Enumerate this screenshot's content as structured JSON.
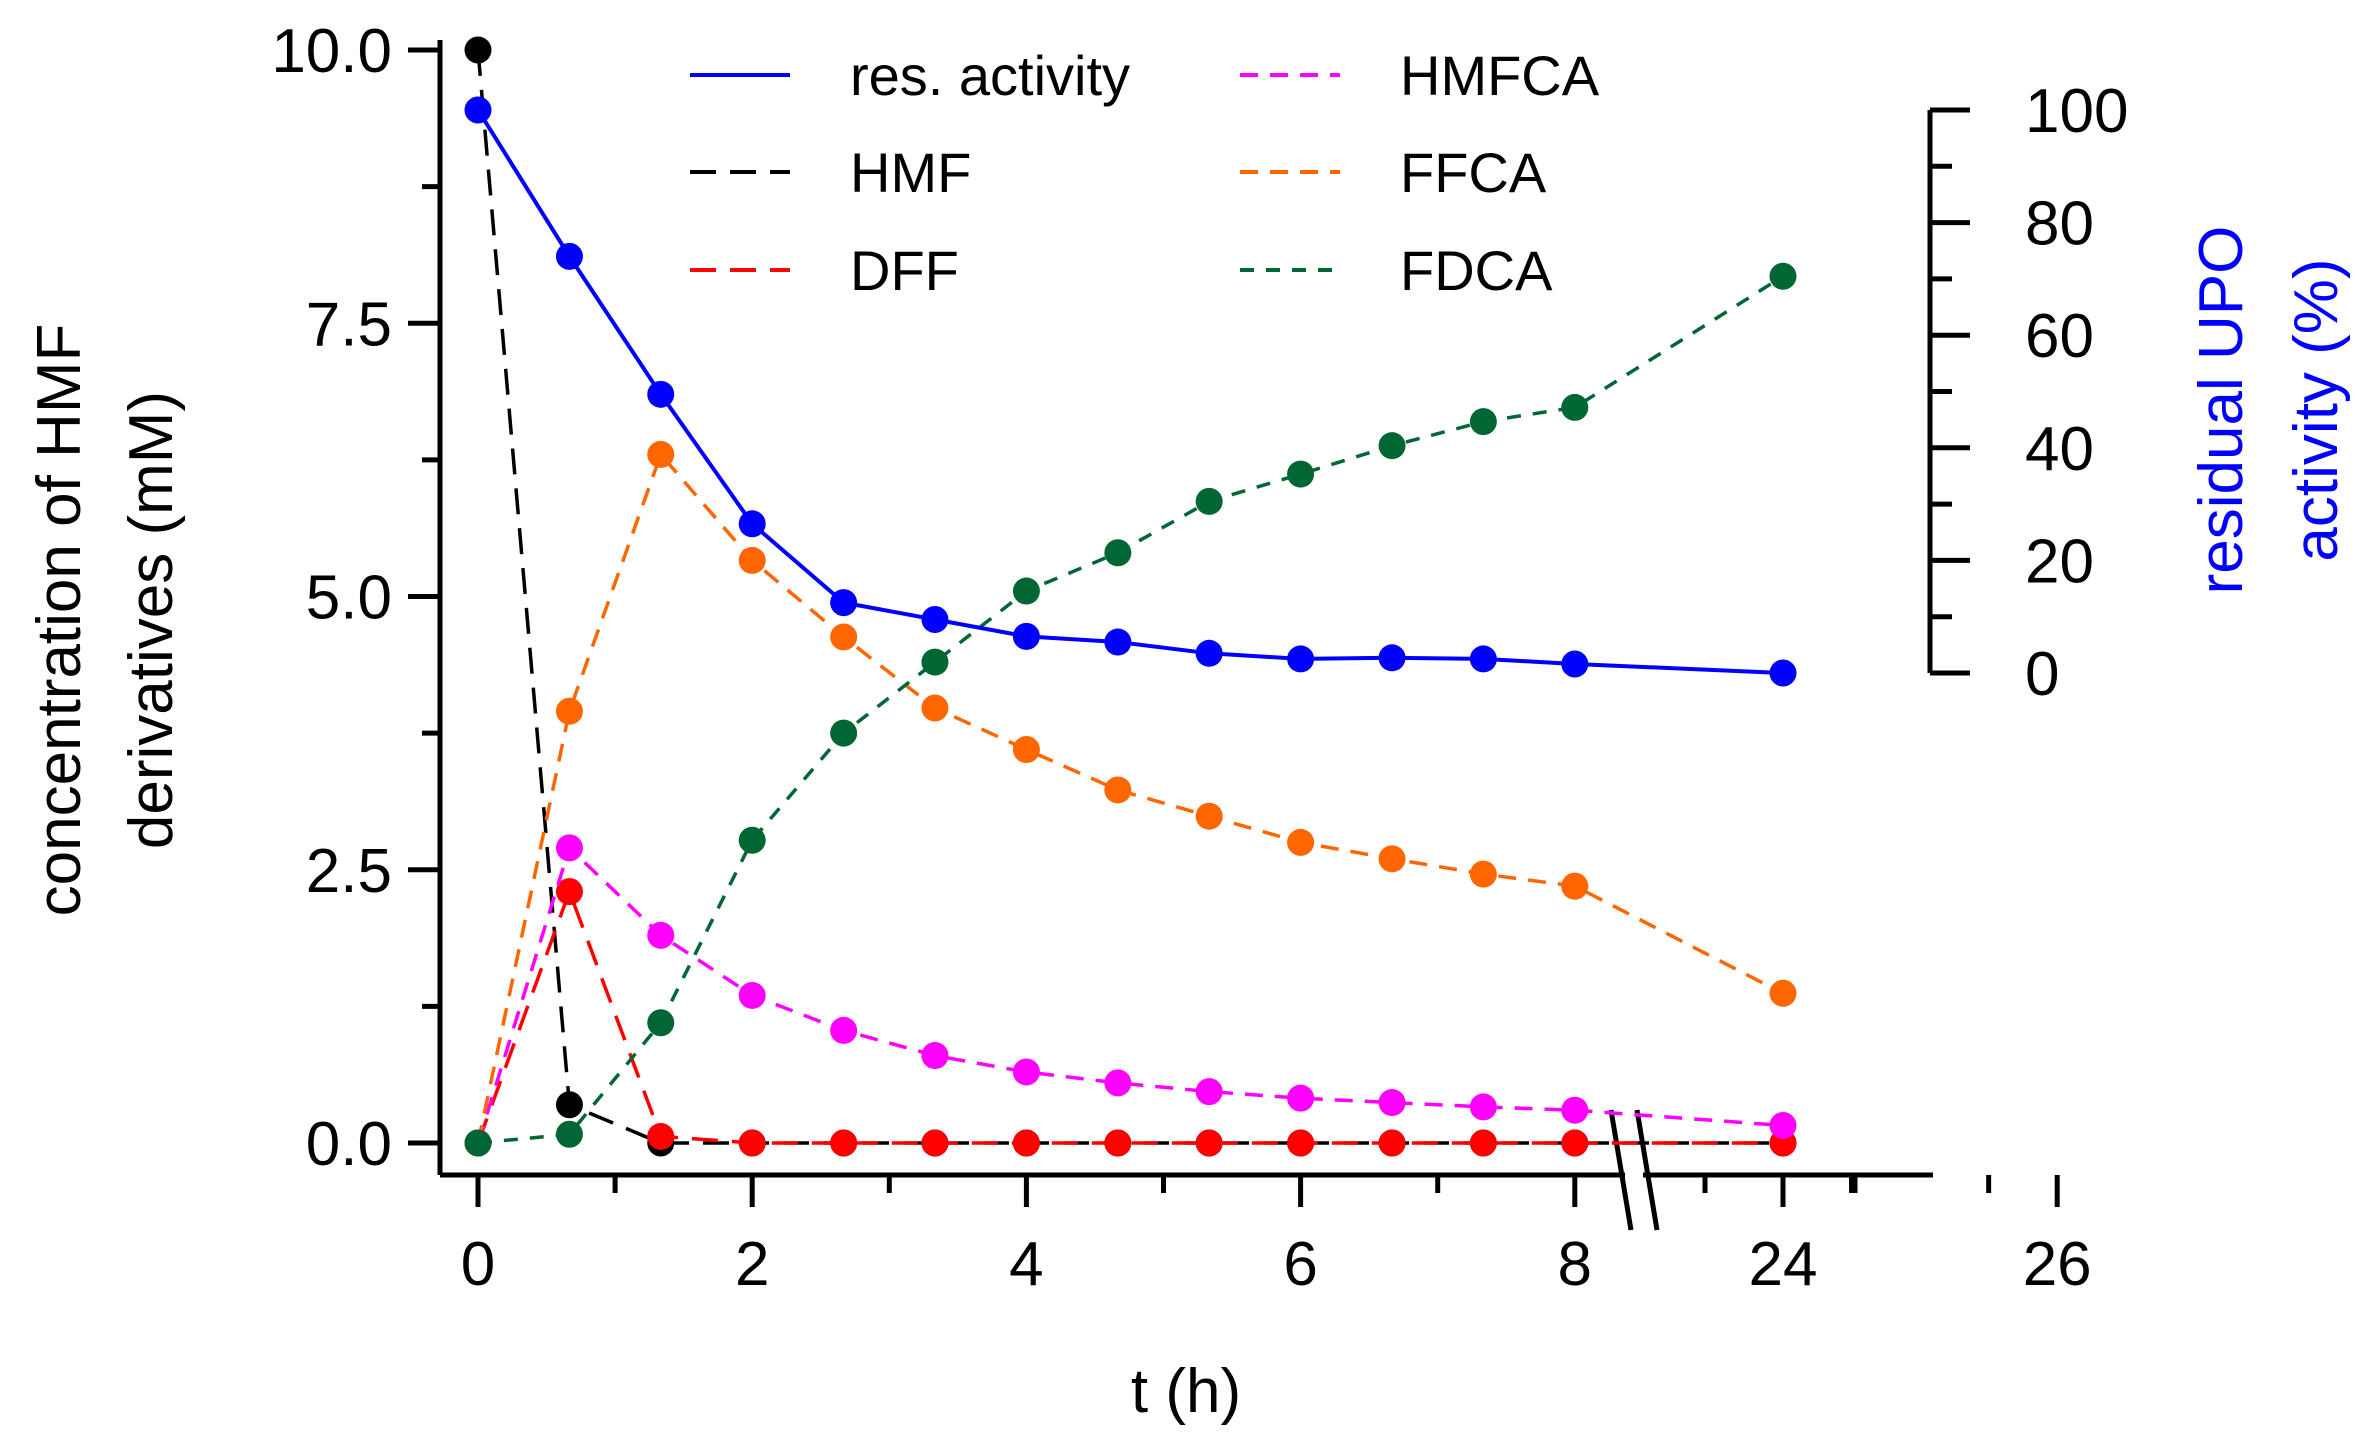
{
  "chart_data": {
    "type": "line",
    "x_label": "t (h)",
    "y_left_label": [
      "concentration of HMF",
      "derivatives (mM)"
    ],
    "y_right_label": [
      "residual UPO",
      "activity (%)"
    ],
    "x_ticks": [
      "0",
      "2",
      "4",
      "6",
      "8",
      "24",
      "26"
    ],
    "y_left_ticks": [
      "0.0",
      "2.5",
      "5.0",
      "7.5",
      "10.0"
    ],
    "y_right_ticks": [
      "0",
      "20",
      "40",
      "60",
      "80",
      "100"
    ],
    "y_left_range": [
      0,
      10
    ],
    "y_right_range": [
      0,
      100
    ],
    "x_break": "axis break between 8 and 24 h",
    "colors": {
      "res_activity": "#0000ff",
      "HMF": "#000000",
      "DFF": "#ff0000",
      "HMFCA": "#ff00ff",
      "FFCA": "#ff6600",
      "FDCA": "#006633",
      "right_axis_label": "#0000ff"
    },
    "series": [
      {
        "key": "res_activity",
        "name": "res. activity",
        "axis": "right",
        "dash": "solid",
        "x": [
          0,
          0.667,
          1.333,
          2,
          2.667,
          3.333,
          4,
          4.667,
          5.333,
          6,
          6.667,
          7.333,
          8,
          24
        ],
        "values": [
          100,
          74,
          49.5,
          26.5,
          12.5,
          9.5,
          6.5,
          5.5,
          3.5,
          2.5,
          2.7,
          2.5,
          1.6,
          0
        ]
      },
      {
        "key": "HMF",
        "name": "HMF",
        "axis": "left",
        "dash": "long",
        "x": [
          0,
          0.667,
          1.333,
          2,
          2.667,
          3.333,
          4,
          4.667,
          5.333,
          6,
          6.667,
          7.333,
          8,
          24
        ],
        "values": [
          10.0,
          0.35,
          0.0,
          0.0,
          0.0,
          0.0,
          0.0,
          0.0,
          0.0,
          0.0,
          0.0,
          0.0,
          0.0,
          0.0
        ]
      },
      {
        "key": "DFF",
        "name": "DFF",
        "axis": "left",
        "dash": "long",
        "x": [
          0,
          0.667,
          1.333,
          2,
          2.667,
          3.333,
          4,
          4.667,
          5.333,
          6,
          6.667,
          7.333,
          8,
          24
        ],
        "values": [
          0.0,
          2.3,
          0.06,
          0.0,
          0.0,
          0.0,
          0.0,
          0.0,
          0.0,
          0.0,
          0.0,
          0.0,
          0.0,
          0.0
        ]
      },
      {
        "key": "HMFCA",
        "name": "HMFCA",
        "axis": "left",
        "dash": "medium",
        "x": [
          0,
          0.667,
          1.333,
          2,
          2.667,
          3.333,
          4,
          4.667,
          5.333,
          6,
          6.667,
          7.333,
          8,
          24
        ],
        "values": [
          0.0,
          2.7,
          1.9,
          1.35,
          1.03,
          0.8,
          0.65,
          0.55,
          0.47,
          0.41,
          0.37,
          0.33,
          0.3,
          0.16
        ]
      },
      {
        "key": "FFCA",
        "name": "FFCA",
        "axis": "left",
        "dash": "medium",
        "x": [
          0,
          0.667,
          1.333,
          2,
          2.667,
          3.333,
          4,
          4.667,
          5.333,
          6,
          6.667,
          7.333,
          8,
          24
        ],
        "values": [
          0.0,
          3.95,
          6.3,
          5.33,
          4.63,
          3.98,
          3.6,
          3.23,
          2.99,
          2.75,
          2.6,
          2.46,
          2.35,
          1.37
        ]
      },
      {
        "key": "FDCA",
        "name": "FDCA",
        "axis": "left",
        "dash": "short",
        "x": [
          0,
          0.667,
          1.333,
          2,
          2.667,
          3.333,
          4,
          4.667,
          5.333,
          6,
          6.667,
          7.333,
          8,
          24
        ],
        "values": [
          0.0,
          0.08,
          1.1,
          2.77,
          3.75,
          4.4,
          5.05,
          5.4,
          5.87,
          6.12,
          6.38,
          6.6,
          6.73,
          7.93
        ]
      }
    ],
    "legend": {
      "columns": [
        [
          "res_activity",
          "HMF",
          "DFF"
        ],
        [
          "HMFCA",
          "FFCA",
          "FDCA"
        ]
      ],
      "placement": "top"
    }
  }
}
